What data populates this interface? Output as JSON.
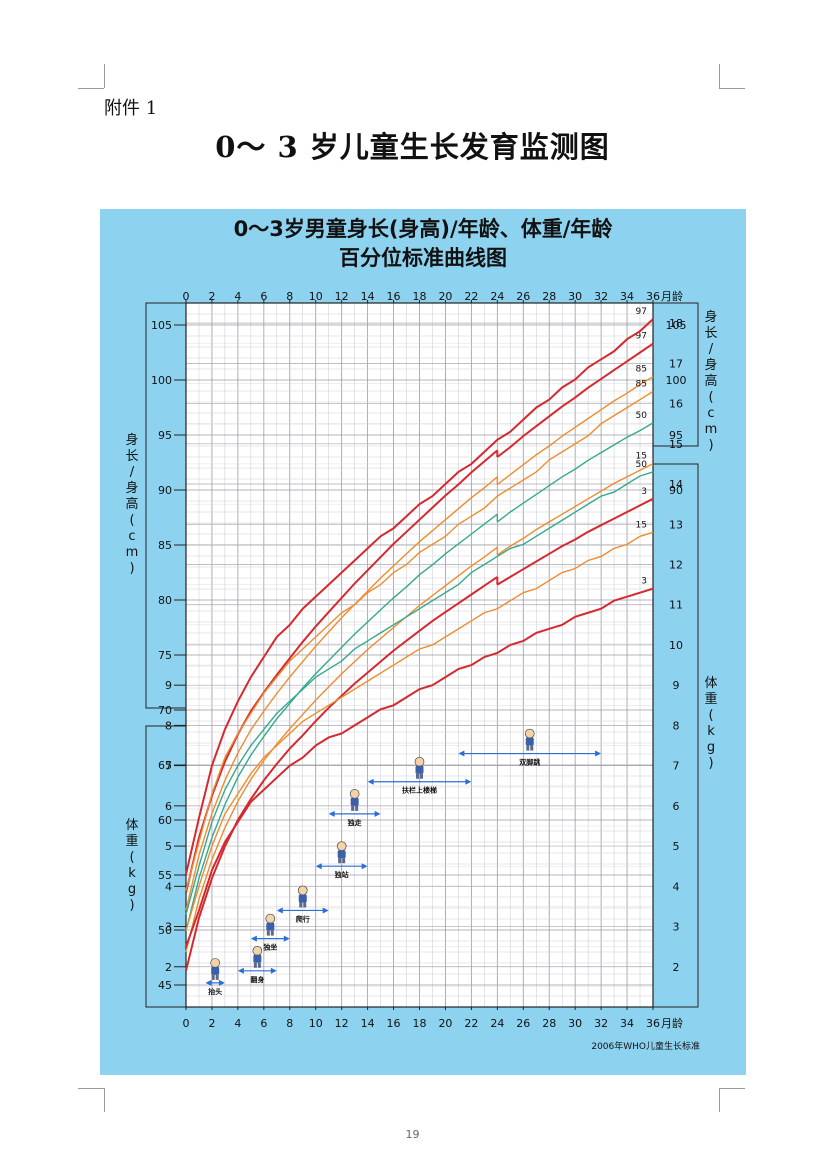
{
  "page": {
    "attachment_label": "附件 1",
    "title": "0～ 3 岁儿童生长发育监测图",
    "page_number": "19"
  },
  "chart_data": {
    "type": "line",
    "title": "0～3岁男童身长(身高)/年龄、体重/年龄",
    "subtitle": "百分位标准曲线图",
    "source": "2006年WHO儿童生长标准",
    "x_unit": "月龄",
    "x_ticks": [
      0,
      2,
      4,
      6,
      8,
      10,
      12,
      14,
      16,
      18,
      20,
      22,
      24,
      26,
      28,
      30,
      32,
      34,
      36
    ],
    "xlim": [
      0,
      36
    ],
    "grid": true,
    "colors": {
      "p97": "#d42a2f",
      "p85": "#ef8c2e",
      "p50": "#35a98e",
      "p15": "#ef8c2e",
      "p3": "#d42a2f"
    },
    "length": {
      "ylabel": "身长/身高 (cm)",
      "ylim": [
        43,
        107
      ],
      "left_ticks": [
        45,
        50,
        55,
        60,
        65,
        70,
        75,
        80,
        85,
        90,
        95,
        100,
        105
      ],
      "right_ticks": [
        90,
        95,
        100,
        105
      ],
      "x": [
        0,
        1,
        2,
        3,
        4,
        5,
        6,
        7,
        8,
        9,
        10,
        11,
        12,
        13,
        14,
        15,
        16,
        17,
        18,
        19,
        20,
        21,
        22,
        23,
        24,
        25,
        26,
        27,
        28,
        29,
        30,
        31,
        32,
        33,
        34,
        35,
        36
      ],
      "series": [
        {
          "name": "97",
          "values_0_24": [
            53.4,
            58.4,
            62.2,
            65.3,
            67.8,
            69.9,
            71.6,
            73.2,
            74.7,
            76.2,
            77.6,
            78.9,
            80.2,
            81.5,
            82.7,
            83.9,
            85.1,
            86.2,
            87.3,
            88.4,
            89.5,
            90.5,
            91.6,
            92.6,
            93.6
          ],
          "values_24_36": [
            93.0,
            93.9,
            94.9,
            95.8,
            96.7,
            97.6,
            98.4,
            99.3,
            100.1,
            100.9,
            101.7,
            102.5,
            103.3
          ]
        },
        {
          "name": "85",
          "values_0_24": [
            51.8,
            56.8,
            60.6,
            63.6,
            66.1,
            68.2,
            69.9,
            71.5,
            73.0,
            74.4,
            75.8,
            77.1,
            78.4,
            79.6,
            80.8,
            82.0,
            83.1,
            84.2,
            85.3,
            86.3,
            87.3,
            88.3,
            89.3,
            90.2,
            91.2
          ],
          "values_24_36": [
            90.5,
            91.4,
            92.3,
            93.2,
            94.0,
            94.9,
            95.7,
            96.5,
            97.3,
            98.1,
            98.8,
            99.6,
            100.3
          ]
        },
        {
          "name": "50",
          "values_0_24": [
            49.9,
            54.7,
            58.4,
            61.4,
            63.9,
            65.9,
            67.6,
            69.2,
            70.6,
            72.0,
            73.3,
            74.5,
            75.7,
            76.9,
            78.0,
            79.1,
            80.2,
            81.2,
            82.3,
            83.2,
            84.2,
            85.1,
            86.0,
            86.9,
            87.8
          ],
          "values_24_36": [
            87.1,
            88.0,
            88.8,
            89.6,
            90.4,
            91.2,
            91.9,
            92.7,
            93.4,
            94.1,
            94.8,
            95.4,
            96.1
          ]
        },
        {
          "name": "15",
          "values_0_24": [
            48.0,
            52.8,
            56.4,
            59.3,
            61.7,
            63.7,
            65.4,
            66.9,
            68.3,
            69.6,
            70.9,
            72.1,
            73.3,
            74.4,
            75.5,
            76.5,
            77.5,
            78.5,
            79.5,
            80.4,
            81.3,
            82.2,
            83.1,
            83.9,
            84.8
          ],
          "values_24_36": [
            84.1,
            84.9,
            85.6,
            86.4,
            87.1,
            87.8,
            88.5,
            89.2,
            89.9,
            90.6,
            91.2,
            91.8,
            92.4
          ]
        },
        {
          "name": "3",
          "values_0_24": [
            46.3,
            51.1,
            54.7,
            57.6,
            60.0,
            61.9,
            63.6,
            65.1,
            66.5,
            67.7,
            69.0,
            70.2,
            71.3,
            72.4,
            73.4,
            74.4,
            75.4,
            76.3,
            77.2,
            78.1,
            78.9,
            79.7,
            80.5,
            81.3,
            82.1
          ],
          "values_24_36": [
            81.4,
            82.1,
            82.8,
            83.5,
            84.2,
            84.9,
            85.5,
            86.2,
            86.8,
            87.4,
            88.0,
            88.6,
            89.2
          ]
        }
      ]
    },
    "weight": {
      "ylabel": "体重 (kg)",
      "ylim": [
        1,
        18.5
      ],
      "left_ticks": [
        2,
        3,
        4,
        5,
        6,
        7,
        8,
        9
      ],
      "right_ticks": [
        2,
        3,
        4,
        5,
        6,
        7,
        8,
        9,
        10,
        11,
        12,
        13,
        14,
        15,
        16,
        17,
        18
      ],
      "x": [
        0,
        1,
        2,
        3,
        4,
        5,
        6,
        7,
        8,
        9,
        10,
        11,
        12,
        13,
        14,
        15,
        16,
        17,
        18,
        19,
        20,
        21,
        22,
        23,
        24,
        25,
        26,
        27,
        28,
        29,
        30,
        31,
        32,
        33,
        34,
        35,
        36
      ],
      "series": [
        {
          "name": "97",
          "values": [
            4.3,
            5.7,
            7.0,
            7.9,
            8.6,
            9.2,
            9.7,
            10.2,
            10.5,
            10.9,
            11.2,
            11.5,
            11.8,
            12.1,
            12.4,
            12.7,
            12.9,
            13.2,
            13.5,
            13.7,
            14.0,
            14.3,
            14.5,
            14.8,
            15.1,
            15.3,
            15.6,
            15.9,
            16.1,
            16.4,
            16.6,
            16.9,
            17.1,
            17.3,
            17.6,
            17.8,
            18.1
          ]
        },
        {
          "name": "85",
          "values": [
            3.9,
            5.1,
            6.3,
            7.2,
            7.8,
            8.3,
            8.8,
            9.2,
            9.6,
            9.9,
            10.2,
            10.5,
            10.8,
            11.0,
            11.3,
            11.5,
            11.8,
            12.0,
            12.3,
            12.5,
            12.7,
            13.0,
            13.2,
            13.4,
            13.7,
            13.9,
            14.1,
            14.3,
            14.6,
            14.8,
            15.0,
            15.2,
            15.5,
            15.7,
            15.9,
            16.1,
            16.3
          ]
        },
        {
          "name": "50",
          "values": [
            3.3,
            4.5,
            5.6,
            6.4,
            7.0,
            7.5,
            7.9,
            8.3,
            8.6,
            8.9,
            9.2,
            9.4,
            9.6,
            9.9,
            10.1,
            10.3,
            10.5,
            10.7,
            10.9,
            11.1,
            11.3,
            11.5,
            11.8,
            12.0,
            12.2,
            12.4,
            12.5,
            12.7,
            12.9,
            13.1,
            13.3,
            13.5,
            13.7,
            13.8,
            14.0,
            14.2,
            14.3
          ]
        },
        {
          "name": "15",
          "values": [
            2.9,
            4.0,
            5.0,
            5.8,
            6.3,
            6.8,
            7.2,
            7.5,
            7.8,
            8.1,
            8.3,
            8.5,
            8.7,
            8.9,
            9.1,
            9.3,
            9.5,
            9.7,
            9.9,
            10.0,
            10.2,
            10.4,
            10.6,
            10.8,
            10.9,
            11.1,
            11.3,
            11.4,
            11.6,
            11.8,
            11.9,
            12.1,
            12.2,
            12.4,
            12.5,
            12.7,
            12.8
          ]
        },
        {
          "name": "3",
          "values": [
            2.5,
            3.4,
            4.4,
            5.1,
            5.6,
            6.1,
            6.4,
            6.7,
            7.0,
            7.2,
            7.5,
            7.7,
            7.8,
            8.0,
            8.2,
            8.4,
            8.5,
            8.7,
            8.9,
            9.0,
            9.2,
            9.4,
            9.5,
            9.7,
            9.8,
            10.0,
            10.1,
            10.3,
            10.4,
            10.5,
            10.7,
            10.8,
            10.9,
            11.1,
            11.2,
            11.3,
            11.4
          ]
        }
      ]
    },
    "milestones": [
      {
        "label": "抬头",
        "start": 1.5,
        "end": 3,
        "level": 1.6,
        "icon": "baby-lifting-head-icon"
      },
      {
        "label": "翻身",
        "start": 4,
        "end": 7,
        "level": 1.9,
        "icon": "baby-rolling-over-icon"
      },
      {
        "label": "独坐",
        "start": 5,
        "end": 8,
        "level": 2.7,
        "icon": "baby-sitting-icon"
      },
      {
        "label": "爬行",
        "start": 7,
        "end": 11,
        "level": 3.4,
        "icon": "baby-crawling-icon"
      },
      {
        "label": "独站",
        "start": 10,
        "end": 14,
        "level": 4.5,
        "icon": "baby-standing-icon"
      },
      {
        "label": "独走",
        "start": 11,
        "end": 15,
        "level": 5.8,
        "icon": "baby-walking-icon"
      },
      {
        "label": "扶栏上楼梯",
        "start": 14,
        "end": 22,
        "level": 6.6,
        "icon": "child-climbing-stairs-icon"
      },
      {
        "label": "双脚跳",
        "start": 21,
        "end": 32,
        "level": 7.3,
        "icon": "child-jumping-icon"
      }
    ]
  }
}
